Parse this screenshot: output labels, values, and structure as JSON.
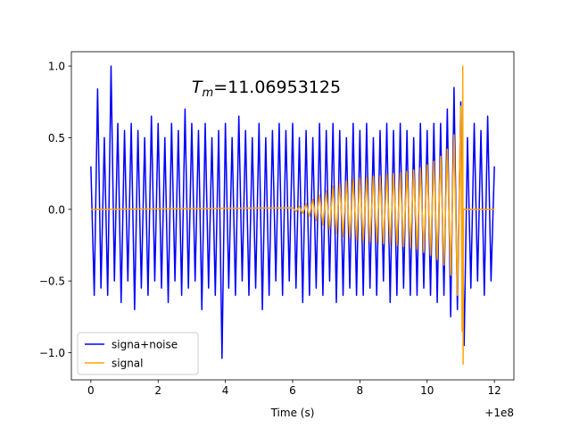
{
  "chart_data": {
    "type": "line",
    "xlabel": "Time (s)",
    "x_offset_text": "+1e8",
    "annotation": {
      "base": "T",
      "sub": "m",
      "rest": "=11.06953125",
      "x": 3.0,
      "y": 0.85
    },
    "xlim": [
      -0.58,
      12.58
    ],
    "ylim": [
      -1.19,
      1.1
    ],
    "xticks": [
      0,
      2,
      4,
      6,
      8,
      10,
      12
    ],
    "yticks": [
      {
        "value": -1.0,
        "label": "−1.0"
      },
      {
        "value": -0.5,
        "label": "−0.5"
      },
      {
        "value": 0.0,
        "label": "0.0"
      },
      {
        "value": 0.5,
        "label": "0.5"
      },
      {
        "value": 1.0,
        "label": "1.0"
      }
    ],
    "legend": "lower left",
    "grid": false,
    "series": [
      {
        "name": "signa+noise",
        "color": "#0000ff",
        "x": [
          0.0,
          0.1,
          0.2,
          0.3,
          0.4,
          0.5,
          0.6,
          0.7,
          0.8,
          0.9,
          1.0,
          1.1,
          1.2,
          1.3,
          1.4,
          1.5,
          1.6,
          1.7,
          1.8,
          1.9,
          2.0,
          2.1,
          2.2,
          2.3,
          2.4,
          2.5,
          2.6,
          2.7,
          2.8,
          2.9,
          3.0,
          3.1,
          3.2,
          3.3,
          3.4,
          3.5,
          3.6,
          3.7,
          3.8,
          3.9,
          4.0,
          4.1,
          4.2,
          4.3,
          4.4,
          4.5,
          4.6,
          4.7,
          4.8,
          4.9,
          5.0,
          5.1,
          5.2,
          5.3,
          5.4,
          5.5,
          5.6,
          5.7,
          5.8,
          5.9,
          6.0,
          6.1,
          6.2,
          6.3,
          6.4,
          6.5,
          6.6,
          6.7,
          6.8,
          6.9,
          7.0,
          7.1,
          7.2,
          7.3,
          7.4,
          7.5,
          7.6,
          7.7,
          7.8,
          7.9,
          8.0,
          8.1,
          8.2,
          8.3,
          8.4,
          8.5,
          8.6,
          8.7,
          8.8,
          8.9,
          9.0,
          9.1,
          9.2,
          9.3,
          9.4,
          9.5,
          9.6,
          9.7,
          9.8,
          9.9,
          10.0,
          10.1,
          10.2,
          10.3,
          10.4,
          10.5,
          10.6,
          10.7,
          10.8,
          10.9,
          11.0,
          11.1,
          11.2,
          11.3,
          11.4,
          11.5,
          11.6,
          11.7,
          11.8,
          11.9,
          12.0
        ],
        "values": [
          0.3,
          -0.6,
          0.84,
          -0.55,
          0.5,
          -0.6,
          1.0,
          -0.5,
          0.6,
          -0.65,
          0.55,
          -0.5,
          0.6,
          -0.7,
          0.55,
          -0.55,
          0.5,
          -0.6,
          0.65,
          -0.5,
          0.6,
          -0.55,
          0.5,
          -0.65,
          0.6,
          -0.5,
          0.55,
          -0.6,
          0.7,
          -0.55,
          0.6,
          -0.5,
          0.55,
          -0.7,
          0.6,
          -0.55,
          0.5,
          -0.6,
          0.55,
          -1.04,
          0.6,
          -0.55,
          0.5,
          -0.6,
          0.65,
          -0.5,
          0.55,
          -0.6,
          0.5,
          -0.55,
          0.6,
          -0.7,
          0.5,
          -0.6,
          0.55,
          -0.5,
          0.6,
          -0.6,
          0.55,
          -0.5,
          0.6,
          -0.55,
          0.5,
          -0.65,
          0.55,
          -0.6,
          0.5,
          -0.55,
          0.6,
          -0.6,
          0.55,
          -0.5,
          0.6,
          -0.65,
          0.55,
          -0.6,
          0.5,
          -0.55,
          0.6,
          -0.6,
          0.55,
          -0.6,
          0.6,
          -0.55,
          0.5,
          -0.6,
          0.55,
          -0.5,
          0.6,
          -0.65,
          0.55,
          -0.6,
          0.6,
          -0.55,
          0.55,
          -0.6,
          0.5,
          -0.6,
          0.6,
          -0.55,
          0.55,
          -0.6,
          0.6,
          -0.65,
          0.6,
          -0.6,
          0.7,
          -0.75,
          0.85,
          -0.7,
          0.75,
          -0.95,
          0.5,
          -0.55,
          0.6,
          -0.5,
          0.55,
          -0.6,
          0.65,
          -0.5,
          0.3
        ]
      },
      {
        "name": "signal",
        "color": "#ffa500",
        "x": [
          0,
          6.0,
          6.1,
          6.2,
          6.3,
          6.4,
          6.5,
          6.6,
          6.7,
          6.8,
          6.9,
          7.0,
          7.1,
          7.2,
          7.3,
          7.4,
          7.5,
          7.6,
          7.7,
          7.8,
          7.9,
          8.0,
          8.1,
          8.2,
          8.3,
          8.4,
          8.5,
          8.6,
          8.7,
          8.8,
          8.9,
          9.0,
          9.1,
          9.2,
          9.3,
          9.4,
          9.5,
          9.6,
          9.7,
          9.8,
          9.9,
          10.0,
          10.1,
          10.2,
          10.3,
          10.4,
          10.5,
          10.6,
          10.7,
          10.8,
          10.9,
          11.0,
          11.04,
          11.06,
          11.07,
          11.08,
          12
        ],
        "values": [
          0,
          0.01,
          -0.015,
          0.02,
          -0.03,
          0.04,
          -0.05,
          0.07,
          -0.08,
          0.1,
          -0.11,
          0.13,
          -0.14,
          0.16,
          -0.17,
          0.18,
          -0.19,
          0.2,
          -0.205,
          0.21,
          -0.215,
          0.22,
          -0.222,
          0.225,
          -0.228,
          0.23,
          -0.232,
          0.235,
          -0.24,
          0.243,
          -0.246,
          0.25,
          -0.253,
          0.257,
          -0.26,
          0.265,
          -0.27,
          0.275,
          -0.28,
          0.29,
          -0.3,
          0.31,
          -0.32,
          0.335,
          -0.35,
          0.37,
          -0.39,
          0.42,
          -0.46,
          0.52,
          -0.6,
          0.72,
          -0.85,
          1.0,
          -1.08,
          0,
          0
        ]
      }
    ]
  }
}
